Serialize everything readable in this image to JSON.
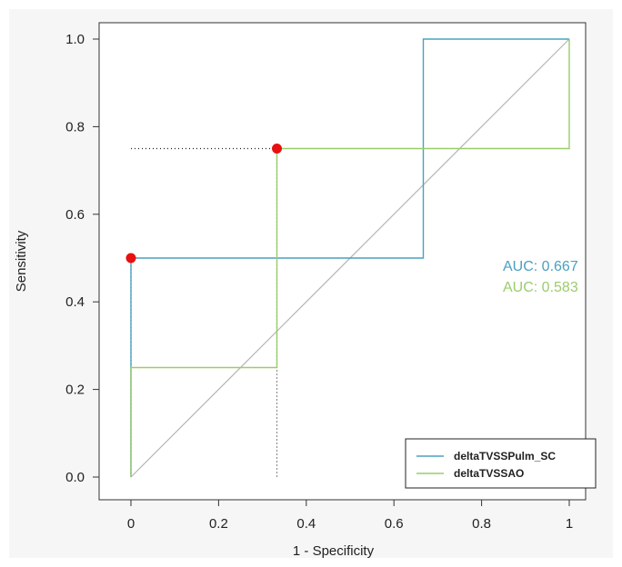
{
  "chart_data": {
    "type": "line",
    "title": "",
    "xlabel": "1 - Specificity",
    "ylabel": "Sensitivity",
    "xlim": [
      0,
      1
    ],
    "ylim": [
      0,
      1
    ],
    "x_ticks": [
      "0",
      "0.2",
      "0.4",
      "0.6",
      "0.8",
      "1"
    ],
    "y_ticks": [
      "0.0",
      "0.2",
      "0.4",
      "0.6",
      "0.8",
      "1.0"
    ],
    "grid": false,
    "legend_position": "bottom-right",
    "series": [
      {
        "name": "deltaTVSSPulm_SC",
        "color": "#4aa0c0",
        "x": [
          0,
          0,
          0,
          0.333,
          0.667,
          0.667,
          1
        ],
        "y": [
          0,
          0.25,
          0.5,
          0.5,
          0.5,
          1.0,
          1.0
        ],
        "auc_label": "AUC: 0.667"
      },
      {
        "name": "deltaTVSSAO",
        "color": "#9acd6a",
        "x": [
          0,
          0,
          0.333,
          0.333,
          0.667,
          1,
          1
        ],
        "y": [
          0,
          0.25,
          0.25,
          0.75,
          0.75,
          0.75,
          1.0
        ],
        "auc_label": "AUC: 0.583"
      }
    ],
    "reference_line": {
      "color": "#b5b5b5",
      "x": [
        0,
        1
      ],
      "y": [
        0,
        1
      ]
    },
    "highlight_points": [
      {
        "x": 0,
        "y": 0.5,
        "color": "#e81010"
      },
      {
        "x": 0.333,
        "y": 0.75,
        "color": "#e81010"
      }
    ]
  }
}
